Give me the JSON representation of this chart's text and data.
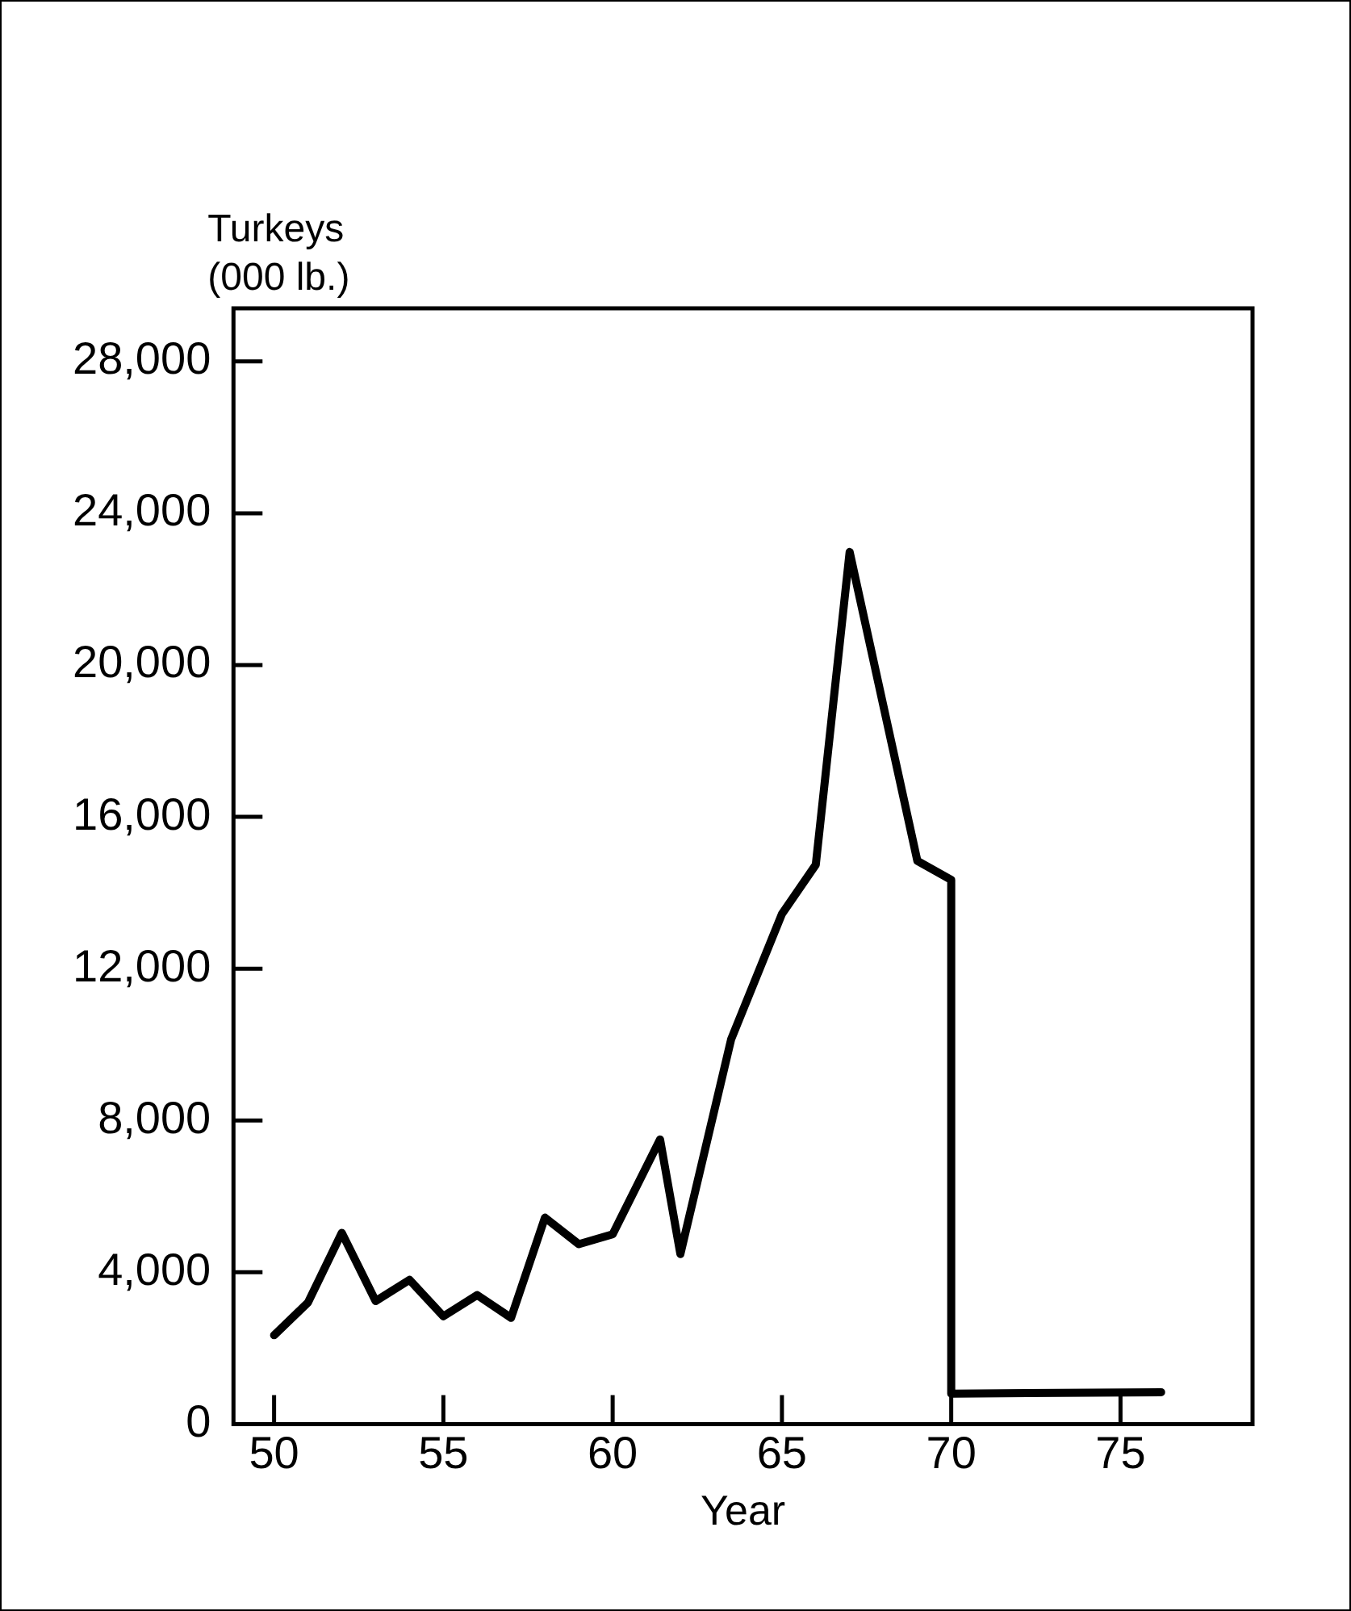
{
  "chart_data": {
    "type": "line",
    "xlabel": "Year",
    "ylabel": "Turkeys\n(000 lb.)",
    "x": [
      50,
      51,
      52,
      53,
      54,
      55,
      56,
      57,
      58,
      59,
      60,
      61.4,
      62,
      63.5,
      65,
      66,
      67,
      69,
      70,
      70,
      76.2
    ],
    "series": [
      {
        "color": "#000000",
        "values": [
          2340,
          3200,
          5040,
          3240,
          3800,
          2840,
          3400,
          2800,
          5440,
          4740,
          5000,
          7500,
          4480,
          10140,
          13440,
          14740,
          22980,
          14840,
          14340,
          800,
          840
        ]
      }
    ],
    "xlim": [
      48.8,
      78.9
    ],
    "xticks": [
      50,
      55,
      60,
      65,
      70,
      75
    ],
    "ylim": [
      0,
      29400
    ],
    "yticks": [
      {
        "value": 0,
        "label": "0"
      },
      {
        "value": 4000,
        "label": "4,000"
      },
      {
        "value": 8000,
        "label": "8,000"
      },
      {
        "value": 12000,
        "label": "12,000"
      },
      {
        "value": 16000,
        "label": "16,000"
      },
      {
        "value": 20000,
        "label": "20,000"
      },
      {
        "value": 24000,
        "label": "24,000"
      },
      {
        "value": 28000,
        "label": "28,000"
      }
    ],
    "grid": false,
    "legend": false,
    "marker": "none",
    "line_style": "solid"
  }
}
